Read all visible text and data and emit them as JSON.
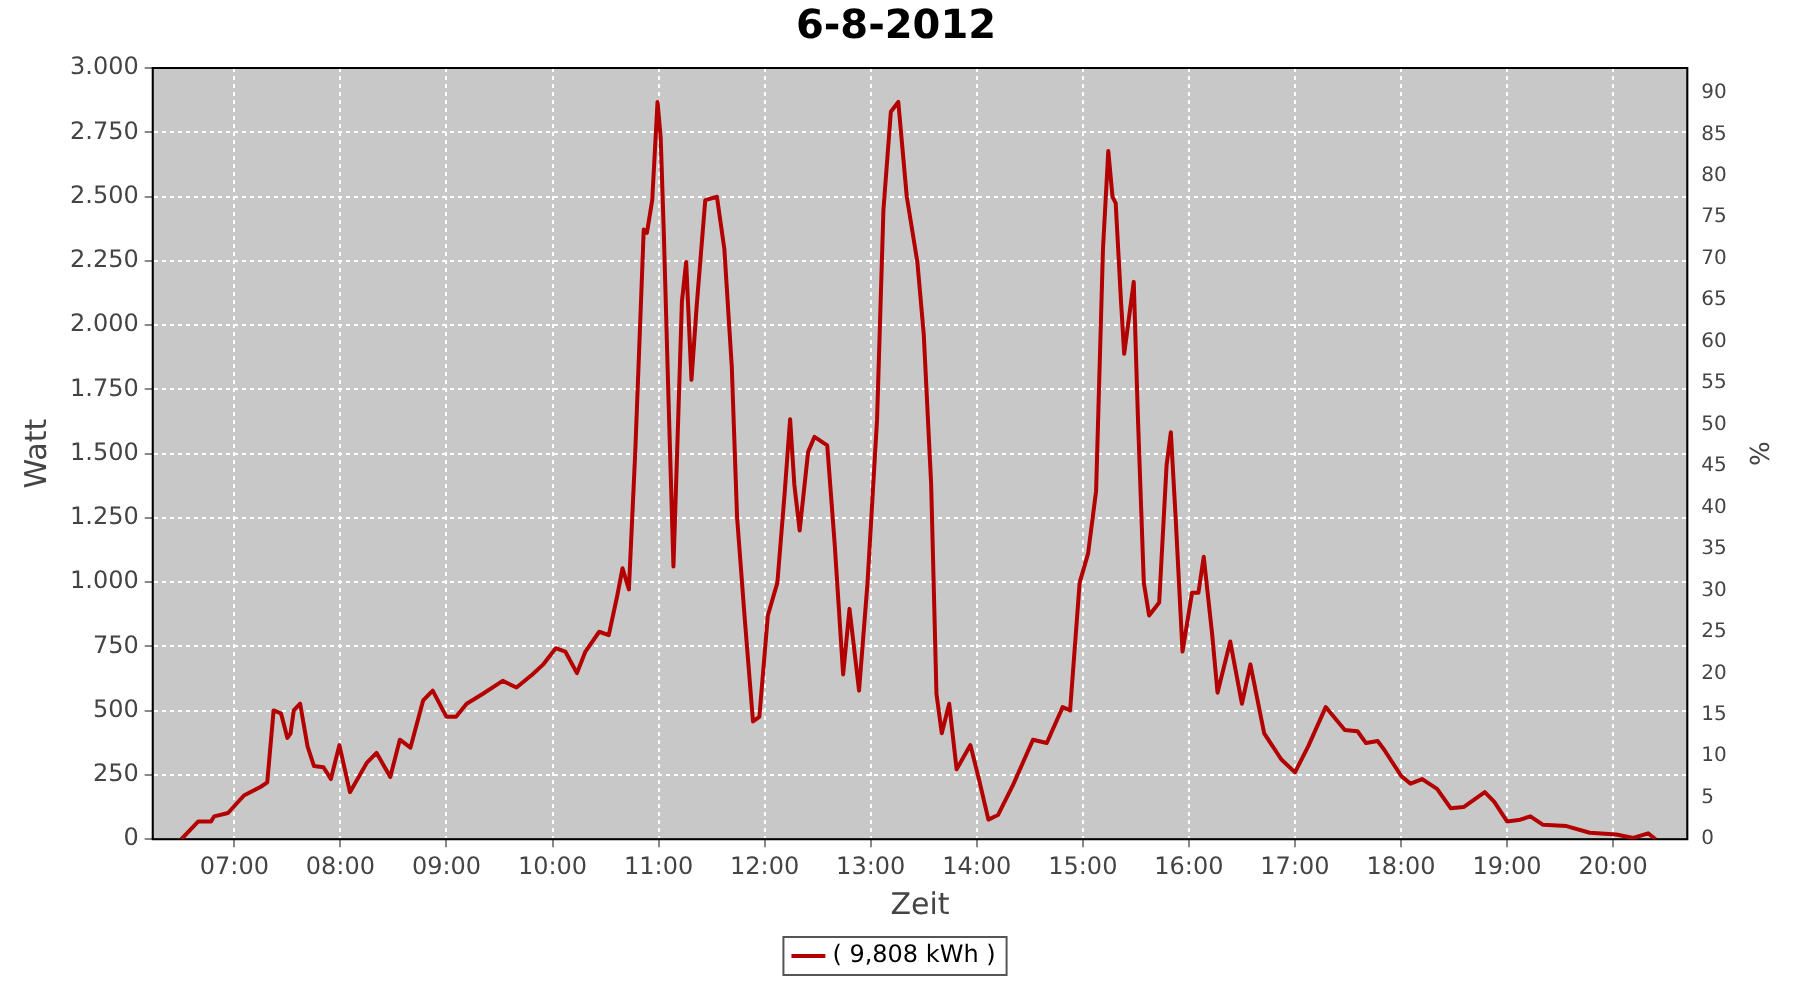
{
  "chart_data": {
    "type": "line",
    "title": "6-8-2012",
    "xlabel": "Zeit",
    "ylabel": "Watt",
    "y2label": "%",
    "x": [
      6.5,
      6.66,
      6.78,
      6.81,
      6.94,
      7.09,
      7.25,
      7.31,
      7.37,
      7.44,
      7.5,
      7.53,
      7.56,
      7.62,
      7.69,
      7.75,
      7.84,
      7.91,
      7.99,
      8.09,
      8.25,
      8.34,
      8.47,
      8.56,
      8.66,
      8.78,
      8.87,
      9.0,
      9.09,
      9.19,
      9.34,
      9.53,
      9.66,
      9.81,
      9.91,
      10.03,
      10.12,
      10.23,
      10.31,
      10.44,
      10.53,
      10.61,
      10.66,
      10.72,
      10.78,
      10.86,
      10.89,
      10.94,
      10.99,
      11.02,
      11.05,
      11.09,
      11.14,
      11.175,
      11.22,
      11.26,
      11.31,
      11.36,
      11.44,
      11.55,
      11.62,
      11.69,
      11.74,
      11.81,
      11.89,
      11.95,
      12.03,
      12.12,
      12.19,
      12.24,
      12.28,
      12.33,
      12.41,
      12.47,
      12.59,
      12.66,
      12.74,
      12.8,
      12.89,
      12.97,
      13.06,
      13.12,
      13.19,
      13.26,
      13.34,
      13.44,
      13.5,
      13.57,
      13.62,
      13.67,
      13.74,
      13.81,
      13.94,
      14.02,
      14.11,
      14.2,
      14.34,
      14.53,
      14.66,
      14.81,
      14.88,
      14.97,
      15.05,
      15.125,
      15.19,
      15.24,
      15.28,
      15.31,
      15.36,
      15.39,
      15.48,
      15.52,
      15.575,
      15.625,
      15.72,
      15.79,
      15.83,
      15.875,
      15.94,
      16.03,
      16.09,
      16.14,
      16.22,
      16.27,
      16.39,
      16.5,
      16.58,
      16.71,
      16.87,
      17.0,
      17.125,
      17.29,
      17.47,
      17.59,
      17.67,
      17.78,
      17.84,
      18.0,
      18.09,
      18.2,
      18.34,
      18.47,
      18.59,
      18.79,
      18.88,
      19.0,
      19.125,
      19.22,
      19.34,
      19.56,
      19.78,
      20.03,
      20.19,
      20.33,
      20.4
    ],
    "series": [
      {
        "name": "( 9,808 kWh )",
        "color": "#b30000",
        "values": [
          0,
          69,
          69,
          89,
          102,
          170,
          204,
          221,
          501,
          489,
          394,
          412,
          501,
          527,
          361,
          285,
          280,
          234,
          366,
          183,
          298,
          336,
          242,
          387,
          356,
          540,
          578,
          476,
          476,
          527,
          565,
          616,
          590,
          641,
          679,
          743,
          730,
          646,
          730,
          807,
          794,
          947,
          1054,
          972,
          1507,
          2372,
          2359,
          2486,
          2868,
          2728,
          2347,
          1761,
          1061,
          1507,
          2092,
          2245,
          1787,
          2079,
          2486,
          2499,
          2296,
          1838,
          1252,
          870,
          458,
          476,
          870,
          998,
          1354,
          1634,
          1379,
          1201,
          1507,
          1565,
          1532,
          1150,
          641,
          896,
          578,
          998,
          1634,
          2448,
          2830,
          2868,
          2499,
          2245,
          1965,
          1379,
          565,
          412,
          527,
          272,
          366,
          234,
          76,
          94,
          209,
          387,
          374,
          514,
          501,
          998,
          1112,
          1354,
          2296,
          2677,
          2499,
          2474,
          2092,
          1888,
          2168,
          1634,
          998,
          870,
          921,
          1456,
          1583,
          1252,
          730,
          959,
          959,
          1099,
          794,
          570,
          769,
          527,
          680,
          412,
          311,
          260,
          361,
          514,
          425,
          420,
          374,
          382,
          349,
          247,
          216,
          234,
          196,
          120,
          125,
          183,
          145,
          69,
          76,
          89,
          56,
          51,
          25,
          18,
          5,
          23,
          0
        ]
      }
    ],
    "xlim": [
      6.23,
      20.7
    ],
    "xticks": [
      {
        "value": 7,
        "label": "07:00"
      },
      {
        "value": 8,
        "label": "08:00"
      },
      {
        "value": 9,
        "label": "09:00"
      },
      {
        "value": 10,
        "label": "10:00"
      },
      {
        "value": 11,
        "label": "11:00"
      },
      {
        "value": 12,
        "label": "12:00"
      },
      {
        "value": 13,
        "label": "13:00"
      },
      {
        "value": 14,
        "label": "14:00"
      },
      {
        "value": 15,
        "label": "15:00"
      },
      {
        "value": 16,
        "label": "16:00"
      },
      {
        "value": 17,
        "label": "17:00"
      },
      {
        "value": 18,
        "label": "18:00"
      },
      {
        "value": 19,
        "label": "19:00"
      },
      {
        "value": 20,
        "label": "20:00"
      }
    ],
    "ylim": [
      0,
      3000
    ],
    "yticks": [
      0,
      250,
      500,
      750,
      {
        "value": 1000,
        "label": "1.000"
      },
      {
        "value": 1250,
        "label": "1.250"
      },
      {
        "value": 1500,
        "label": "1.500"
      },
      {
        "value": 1750,
        "label": "1.750"
      },
      {
        "value": 2000,
        "label": "2.000"
      },
      {
        "value": 2250,
        "label": "2.250"
      },
      {
        "value": 2500,
        "label": "2.500"
      },
      {
        "value": 2750,
        "label": "2.750"
      },
      {
        "value": 3000,
        "label": "3.000"
      }
    ],
    "y2lim": [
      0,
      93
    ],
    "y2ticks": [
      0,
      5,
      10,
      15,
      20,
      25,
      30,
      35,
      40,
      45,
      50,
      55,
      60,
      65,
      70,
      75,
      80,
      85,
      90
    ],
    "grid": true,
    "legend": "bottom",
    "marker": "none",
    "line_style": "solid"
  }
}
